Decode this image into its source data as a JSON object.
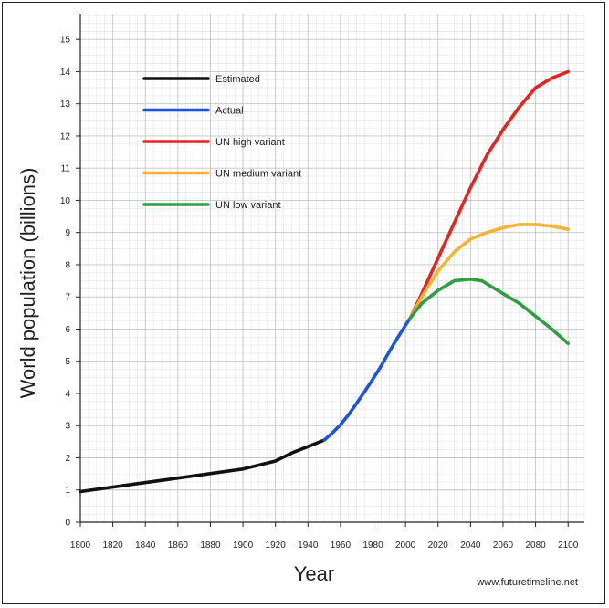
{
  "chart_data": {
    "type": "line",
    "title": "",
    "xlabel": "Year",
    "ylabel": "World population (billions)",
    "xlim": [
      1800,
      2110
    ],
    "ylim": [
      0,
      15.8
    ],
    "grid": true,
    "legend_position": "top-left",
    "x_ticks": [
      1800,
      1820,
      1840,
      1860,
      1880,
      1900,
      1920,
      1940,
      1960,
      1980,
      2000,
      2020,
      2040,
      2060,
      2080,
      2100
    ],
    "x_tick_labels": [
      "1800",
      "1820",
      "1840",
      "1860",
      "1880",
      "1900",
      "1920",
      "1940",
      "1960",
      "1980",
      "2000",
      "2020",
      "2040",
      "2060",
      "2080",
      "2100"
    ],
    "y_ticks": [
      0,
      1,
      2,
      3,
      4,
      5,
      6,
      7,
      8,
      9,
      10,
      11,
      12,
      13,
      14,
      15
    ],
    "y_tick_labels": [
      "0",
      "1",
      "2",
      "3",
      "4",
      "5",
      "6",
      "7",
      "8",
      "9",
      "10",
      "11",
      "12",
      "13",
      "14",
      "15"
    ],
    "series": [
      {
        "name": "Estimated",
        "color": "#111111",
        "x": [
          1800,
          1850,
          1900,
          1920,
          1930,
          1940,
          1950
        ],
        "y": [
          0.95,
          1.3,
          1.65,
          1.9,
          2.15,
          2.35,
          2.55
        ]
      },
      {
        "name": "Actual",
        "color": "#1a56db",
        "x": [
          1950,
          1955,
          1960,
          1965,
          1970,
          1975,
          1980,
          1985,
          1990,
          1995,
          2000,
          2003
        ],
        "y": [
          2.55,
          2.77,
          3.03,
          3.34,
          3.7,
          4.07,
          4.45,
          4.85,
          5.3,
          5.72,
          6.12,
          6.35
        ]
      },
      {
        "name": "UN high variant",
        "color": "#e8231e",
        "x": [
          2003,
          2010,
          2020,
          2030,
          2040,
          2050,
          2060,
          2070,
          2080,
          2090,
          2100
        ],
        "y": [
          6.35,
          7.1,
          8.2,
          9.3,
          10.4,
          11.4,
          12.2,
          12.9,
          13.5,
          13.8,
          14.0
        ]
      },
      {
        "name": "UN medium variant",
        "color": "#f9b233",
        "x": [
          2003,
          2010,
          2020,
          2030,
          2040,
          2050,
          2060,
          2070,
          2080,
          2090,
          2100
        ],
        "y": [
          6.35,
          7.0,
          7.8,
          8.4,
          8.8,
          9.0,
          9.15,
          9.25,
          9.25,
          9.2,
          9.1
        ]
      },
      {
        "name": "UN low variant",
        "color": "#2e9e41",
        "x": [
          2003,
          2010,
          2020,
          2030,
          2040,
          2047,
          2060,
          2070,
          2080,
          2090,
          2100
        ],
        "y": [
          6.35,
          6.8,
          7.2,
          7.5,
          7.55,
          7.5,
          7.1,
          6.8,
          6.4,
          6.0,
          5.55
        ]
      }
    ],
    "source": "www.futuretimeline.net"
  }
}
